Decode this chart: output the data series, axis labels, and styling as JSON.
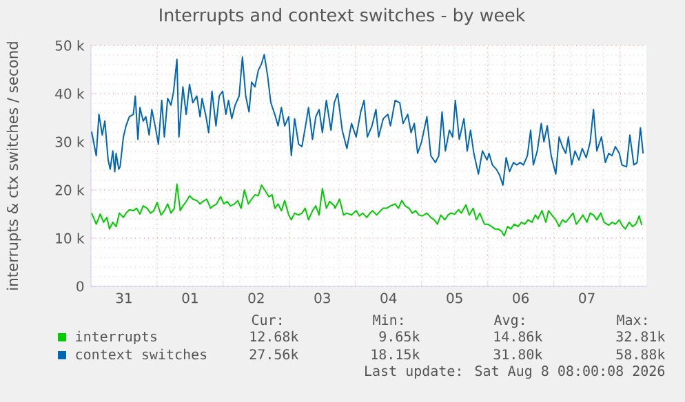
{
  "chart_data": {
    "type": "line",
    "title": "Interrupts and context switches - by week",
    "ylabel": "interrupts & ctx switches / second",
    "xlim": [
      "2026-07-31T00:00",
      "2026-08-08T09:36"
    ],
    "ylim": [
      0,
      50000
    ],
    "xticks": [
      {
        "value": "2026-07-31T12:00",
        "label": "31"
      },
      {
        "value": "2026-08-01T12:00",
        "label": "01"
      },
      {
        "value": "2026-08-02T12:00",
        "label": "02"
      },
      {
        "value": "2026-08-03T12:00",
        "label": "03"
      },
      {
        "value": "2026-08-04T12:00",
        "label": "04"
      },
      {
        "value": "2026-08-05T12:00",
        "label": "05"
      },
      {
        "value": "2026-08-06T12:00",
        "label": "06"
      },
      {
        "value": "2026-08-07T12:00",
        "label": "07"
      },
      {
        "value": "2026-08-01T00:00",
        "label": null
      },
      {
        "value": "2026-08-02T00:00",
        "label": null
      },
      {
        "value": "2026-08-03T00:00",
        "label": null
      },
      {
        "value": "2026-08-04T00:00",
        "label": null
      },
      {
        "value": "2026-08-05T00:00",
        "label": null
      },
      {
        "value": "2026-08-06T00:00",
        "label": null
      },
      {
        "value": "2026-08-07T00:00",
        "label": null
      },
      {
        "value": "2026-08-08T00:00",
        "label": null
      }
    ],
    "yticks": [
      0,
      {
        "value": 10000,
        "label": "10 k"
      },
      {
        "value": 20000,
        "label": "20 k"
      },
      {
        "value": 30000,
        "label": "30 k"
      },
      {
        "value": 40000,
        "label": "40 k"
      },
      {
        "value": 50000,
        "label": "50 k"
      }
    ],
    "grid": true,
    "legend": "bottom",
    "series": [
      {
        "name": "interrupts",
        "color": "#00cc00",
        "x": [
          "2026-07-31T00:14",
          "2026-07-31T01:55",
          "2026-07-31T03:22",
          "2026-07-31T04:34",
          "2026-07-31T05:46",
          "2026-07-31T06:43",
          "2026-07-31T07:55",
          "2026-07-31T09:07",
          "2026-07-31T10:19",
          "2026-07-31T11:46",
          "2026-07-31T12:43",
          "2026-07-31T13:55",
          "2026-07-31T15:22",
          "2026-07-31T16:34",
          "2026-07-31T17:46",
          "2026-07-31T18:58",
          "2026-07-31T20:24",
          "2026-07-31T21:36",
          "2026-07-31T22:48",
          "2026-08-01T00:00",
          "2026-08-01T01:26",
          "2026-08-01T02:38",
          "2026-08-01T03:50",
          "2026-08-01T05:02",
          "2026-08-01T06:14",
          "2026-08-01T07:12",
          "2026-08-01T08:24",
          "2026-08-01T09:22",
          "2026-08-01T10:34",
          "2026-08-01T11:46",
          "2026-08-01T12:58",
          "2026-08-01T14:24",
          "2026-08-01T15:36",
          "2026-08-01T16:34",
          "2026-08-01T18:00",
          "2026-08-01T19:26",
          "2026-08-01T20:24",
          "2026-08-01T21:36",
          "2026-08-01T23:02",
          "2026-08-02T00:14",
          "2026-08-02T01:26",
          "2026-08-02T02:38",
          "2026-08-02T04:05",
          "2026-08-02T05:17",
          "2026-08-02T06:29",
          "2026-08-02T07:41",
          "2026-08-02T09:07",
          "2026-08-02T10:19",
          "2026-08-02T11:31",
          "2026-08-02T12:43",
          "2026-08-02T13:55",
          "2026-08-02T15:22",
          "2026-08-02T16:34",
          "2026-08-02T17:46",
          "2026-08-02T18:43",
          "2026-08-02T19:55",
          "2026-08-02T21:07",
          "2026-08-02T22:19",
          "2026-08-02T23:46",
          "2026-08-03T00:43",
          "2026-08-03T01:55",
          "2026-08-03T03:22",
          "2026-08-03T04:34",
          "2026-08-03T05:46",
          "2026-08-03T06:58",
          "2026-08-03T08:24",
          "2026-08-03T09:36",
          "2026-08-03T10:48",
          "2026-08-03T12:00",
          "2026-08-03T13:26",
          "2026-08-03T14:38",
          "2026-08-03T16:19",
          "2026-08-03T16:34",
          "2026-08-03T18:14",
          "2026-08-03T19:41",
          "2026-08-03T20:53",
          "2026-08-03T22:34",
          "2026-08-04T00:14",
          "2026-08-04T01:26",
          "2026-08-04T02:38",
          "2026-08-04T04:05",
          "2026-08-04T05:17",
          "2026-08-04T06:14",
          "2026-08-04T07:41",
          "2026-08-04T09:07",
          "2026-08-04T10:05",
          "2026-08-04T11:17",
          "2026-08-04T12:43",
          "2026-08-04T14:24",
          "2026-08-04T15:36",
          "2026-08-04T16:48",
          "2026-08-04T18:00",
          "2026-08-04T19:26",
          "2026-08-04T20:38",
          "2026-08-04T21:50",
          "2026-08-04T23:02",
          "2026-08-05T00:14",
          "2026-08-05T01:55",
          "2026-08-05T03:22",
          "2026-08-05T04:34",
          "2026-08-05T05:46",
          "2026-08-05T06:58",
          "2026-08-05T08:24",
          "2026-08-05T09:36",
          "2026-08-05T10:34",
          "2026-08-05T12:00",
          "2026-08-05T13:26",
          "2026-08-05T14:24",
          "2026-08-05T16:05",
          "2026-08-05T17:17",
          "2026-08-05T18:43",
          "2026-08-05T19:55",
          "2026-08-05T21:07",
          "2026-08-05T22:48",
          "2026-08-06T00:00",
          "2026-08-06T01:26",
          "2026-08-06T02:38",
          "2026-08-06T03:50",
          "2026-08-06T05:02",
          "2026-08-06T06:00",
          "2026-08-06T07:12",
          "2026-08-06T08:24",
          "2026-08-06T09:36",
          "2026-08-06T11:02",
          "2026-08-06T12:14",
          "2026-08-06T13:26",
          "2026-08-06T14:38",
          "2026-08-06T16:05",
          "2026-08-06T17:17",
          "2026-08-06T18:14",
          "2026-08-06T19:41",
          "2026-08-06T21:07",
          "2026-08-06T22:05",
          "2026-08-06T23:17",
          "2026-08-07T00:43",
          "2026-08-07T01:55",
          "2026-08-07T03:07",
          "2026-08-07T04:19",
          "2026-08-07T05:46",
          "2026-08-07T06:58",
          "2026-08-07T08:10",
          "2026-08-07T09:22",
          "2026-08-07T10:34",
          "2026-08-07T12:00",
          "2026-08-07T13:12",
          "2026-08-07T14:24",
          "2026-08-07T15:36",
          "2026-08-07T17:02",
          "2026-08-07T18:14",
          "2026-08-07T19:55",
          "2026-08-07T21:07",
          "2026-08-07T22:19",
          "2026-08-07T23:46",
          "2026-08-08T00:43",
          "2026-08-08T01:55",
          "2026-08-08T03:22",
          "2026-08-08T04:34",
          "2026-08-08T05:46",
          "2026-08-08T06:58",
          "2026-08-08T07:55"
        ],
        "values": [
          15200,
          12900,
          15000,
          13300,
          14300,
          11900,
          13300,
          12400,
          15200,
          14300,
          15200,
          15900,
          15700,
          16200,
          15000,
          16700,
          16200,
          15200,
          15700,
          17400,
          14800,
          15700,
          17100,
          15200,
          16200,
          21200,
          15700,
          16700,
          17600,
          18800,
          18100,
          17800,
          17100,
          17600,
          18100,
          16200,
          16700,
          17100,
          18600,
          17100,
          17600,
          16700,
          17100,
          17800,
          16200,
          20000,
          17100,
          18100,
          19000,
          18800,
          21000,
          19700,
          18600,
          19000,
          16200,
          17100,
          15700,
          17800,
          14800,
          13800,
          15200,
          14800,
          15200,
          16200,
          13800,
          15700,
          16700,
          14800,
          20300,
          16200,
          17600,
          16700,
          16200,
          18100,
          14800,
          15200,
          14800,
          15700,
          14600,
          15200,
          14300,
          15200,
          15700,
          14800,
          15700,
          16200,
          16200,
          16700,
          17100,
          16200,
          17800,
          16700,
          16200,
          15200,
          15700,
          14800,
          14600,
          15200,
          14300,
          13800,
          12900,
          14800,
          13800,
          14800,
          15200,
          15000,
          15900,
          15200,
          16900,
          14800,
          16200,
          13800,
          15200,
          12900,
          12900,
          12400,
          11900,
          11900,
          11400,
          10500,
          12400,
          11900,
          12900,
          12400,
          13300,
          12900,
          13800,
          13300,
          14800,
          14000,
          15700,
          13300,
          15700,
          14800,
          13800,
          12400,
          13800,
          13300,
          14300,
          15200,
          12900,
          13800,
          14800,
          13300,
          15200,
          14800,
          13800,
          15200,
          13300,
          12700,
          13300,
          12900,
          13800,
          12700,
          11900,
          13300,
          12400,
          12900,
          14600,
          12700
        ]
      },
      {
        "name": "context switches",
        "color": "#0066b3",
        "x": [
          "2026-07-31T00:14",
          "2026-07-31T01:55",
          "2026-07-31T02:53",
          "2026-07-31T04:05",
          "2026-07-31T05:02",
          "2026-07-31T06:14",
          "2026-07-31T06:58",
          "2026-07-31T07:55",
          "2026-07-31T08:38",
          "2026-07-31T09:07",
          "2026-07-31T10:05",
          "2026-07-31T10:34",
          "2026-07-31T11:46",
          "2026-07-31T12:43",
          "2026-07-31T13:55",
          "2026-07-31T15:22",
          "2026-07-31T16:05",
          "2026-07-31T17:02",
          "2026-07-31T17:46",
          "2026-07-31T18:58",
          "2026-07-31T19:55",
          "2026-07-31T21:07",
          "2026-07-31T22:05",
          "2026-07-31T23:17",
          "2026-08-01T00:29",
          "2026-08-01T01:41",
          "2026-08-01T02:38",
          "2026-08-01T03:50",
          "2026-08-01T05:02",
          "2026-08-01T06:00",
          "2026-08-01T07:12",
          "2026-08-01T07:55",
          "2026-08-01T09:22",
          "2026-08-01T10:34",
          "2026-08-01T11:46",
          "2026-08-01T12:58",
          "2026-08-01T14:24",
          "2026-08-01T15:36",
          "2026-08-01T16:19",
          "2026-08-01T17:46",
          "2026-08-01T18:43",
          "2026-08-01T19:55",
          "2026-08-01T21:22",
          "2026-08-01T22:34",
          "2026-08-01T23:46",
          "2026-08-02T00:58",
          "2026-08-02T01:55",
          "2026-08-02T03:07",
          "2026-08-02T04:19",
          "2026-08-02T05:46",
          "2026-08-02T06:58",
          "2026-08-02T08:10",
          "2026-08-02T09:22",
          "2026-08-02T10:19",
          "2026-08-02T11:31",
          "2026-08-02T12:43",
          "2026-08-02T13:55",
          "2026-08-02T14:53",
          "2026-08-02T16:05",
          "2026-08-02T17:17",
          "2026-08-02T18:43",
          "2026-08-02T19:55",
          "2026-08-02T21:07",
          "2026-08-02T22:19",
          "2026-08-02T23:46",
          "2026-08-03T00:43",
          "2026-08-03T01:55",
          "2026-08-03T03:22",
          "2026-08-03T04:34",
          "2026-08-03T05:46",
          "2026-08-03T06:58",
          "2026-08-03T08:24",
          "2026-08-03T09:36",
          "2026-08-03T10:48",
          "2026-08-03T12:00",
          "2026-08-03T13:26",
          "2026-08-03T15:07",
          "2026-08-03T16:19",
          "2026-08-03T17:31",
          "2026-08-03T19:12",
          "2026-08-03T20:53",
          "2026-08-03T22:34",
          "2026-08-04T00:14",
          "2026-08-04T01:55",
          "2026-08-04T03:07",
          "2026-08-04T04:19",
          "2026-08-04T06:00",
          "2026-08-04T07:26",
          "2026-08-04T08:24",
          "2026-08-04T10:05",
          "2026-08-04T11:46",
          "2026-08-04T12:43",
          "2026-08-04T14:24",
          "2026-08-04T16:05",
          "2026-08-04T17:17",
          "2026-08-04T18:58",
          "2026-08-04T20:10",
          "2026-08-04T21:22",
          "2026-08-04T22:34",
          "2026-08-05T00:00",
          "2026-08-05T01:55",
          "2026-08-05T03:22",
          "2026-08-05T05:02",
          "2026-08-05T06:14",
          "2026-08-05T07:26",
          "2026-08-05T08:38",
          "2026-08-05T10:05",
          "2026-08-05T11:17",
          "2026-08-05T12:14",
          "2026-08-05T13:41",
          "2026-08-05T15:22",
          "2026-08-05T16:34",
          "2026-08-05T17:46",
          "2026-08-05T18:58",
          "2026-08-05T20:38",
          "2026-08-05T22:05",
          "2026-08-05T23:46",
          "2026-08-06T00:29",
          "2026-08-06T01:41",
          "2026-08-06T03:07",
          "2026-08-06T04:19",
          "2026-08-06T05:31",
          "2026-08-06T06:43",
          "2026-08-06T07:55",
          "2026-08-06T09:22",
          "2026-08-06T10:34",
          "2026-08-06T11:46",
          "2026-08-06T12:58",
          "2026-08-06T14:24",
          "2026-08-06T15:36",
          "2026-08-06T16:34",
          "2026-08-06T18:00",
          "2026-08-06T19:26",
          "2026-08-06T20:24",
          "2026-08-06T21:36",
          "2026-08-06T23:02",
          "2026-08-07T00:43",
          "2026-08-07T01:55",
          "2026-08-07T03:07",
          "2026-08-07T04:19",
          "2026-08-07T05:17",
          "2026-08-07T06:29",
          "2026-08-07T07:41",
          "2026-08-07T09:07",
          "2026-08-07T10:19",
          "2026-08-07T11:46",
          "2026-08-07T13:12",
          "2026-08-07T14:24",
          "2026-08-07T15:36",
          "2026-08-07T17:17",
          "2026-08-07T18:43",
          "2026-08-07T19:55",
          "2026-08-07T21:07",
          "2026-08-07T22:19",
          "2026-08-07T23:46",
          "2026-08-08T00:43",
          "2026-08-08T02:24",
          "2026-08-08T03:36",
          "2026-08-08T05:02",
          "2026-08-08T06:14",
          "2026-08-08T07:26",
          "2026-08-08T08:24"
        ],
        "values": [
          32100,
          27100,
          35700,
          31400,
          34300,
          26200,
          24300,
          28100,
          23800,
          27600,
          24300,
          24800,
          31000,
          33300,
          35200,
          35700,
          39500,
          30500,
          37100,
          34300,
          35200,
          31400,
          36700,
          33300,
          29500,
          38600,
          31000,
          39000,
          37600,
          40500,
          47100,
          31000,
          41400,
          35700,
          41900,
          38100,
          39500,
          35200,
          39000,
          35200,
          31900,
          40500,
          33300,
          39500,
          40500,
          35700,
          38600,
          34800,
          37600,
          39500,
          47600,
          39500,
          36200,
          42400,
          41400,
          44800,
          46200,
          48100,
          43800,
          38100,
          35700,
          33300,
          37100,
          33300,
          35200,
          27100,
          34800,
          29500,
          29000,
          32900,
          37100,
          30500,
          35200,
          36700,
          31900,
          38600,
          32400,
          38100,
          40000,
          32400,
          28600,
          33800,
          31000,
          36200,
          38600,
          31000,
          33300,
          36700,
          31000,
          34800,
          35700,
          33300,
          38600,
          38100,
          33800,
          35700,
          31900,
          33800,
          27600,
          30000,
          35200,
          27100,
          25700,
          27100,
          36200,
          28100,
          32400,
          31000,
          38600,
          30500,
          34800,
          28100,
          32400,
          27600,
          23300,
          28100,
          26200,
          27600,
          25200,
          24300,
          23100,
          21000,
          26700,
          23800,
          25700,
          25200,
          25700,
          25200,
          27100,
          32400,
          25200,
          28100,
          33800,
          30000,
          33300,
          27100,
          23300,
          31000,
          29000,
          27600,
          31000,
          25200,
          28100,
          26200,
          28600,
          26700,
          30000,
          36700,
          28100,
          31000,
          25700,
          27600,
          27100,
          29000,
          27600,
          25200,
          24800,
          31400,
          25200,
          25700,
          32900,
          27600
        ]
      }
    ],
    "annotations": [
      "Cur:",
      "Min:",
      "Avg:",
      "Max:",
      "12.68k",
      "9.65k",
      "14.86k",
      "32.81k",
      "27.56k",
      "18.15k",
      "31.80k",
      "58.88k",
      "Last update: Sat Aug  8 08:00:08 2026"
    ]
  }
}
